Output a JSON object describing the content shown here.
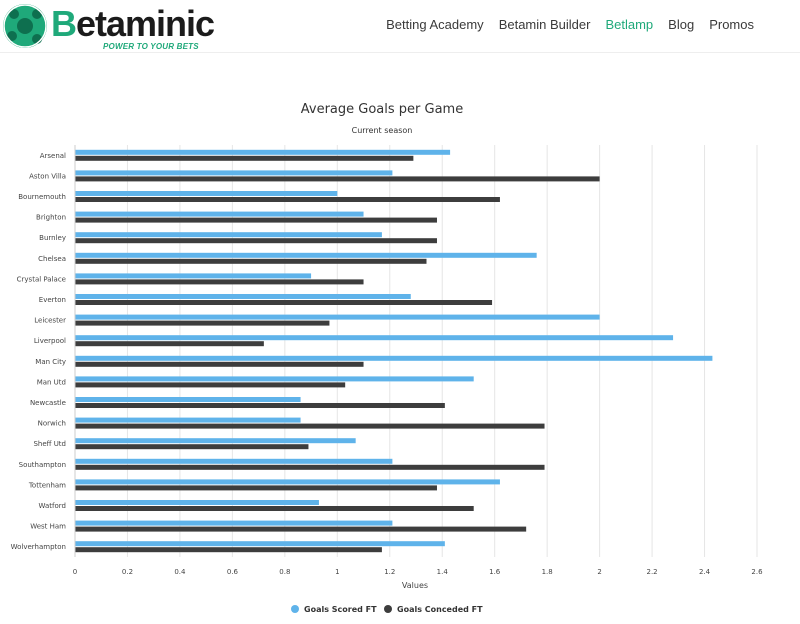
{
  "brand": {
    "logo_text_first": "B",
    "logo_text_rest": "etaminic",
    "tagline": "POWER TO YOUR BETS",
    "accent_color": "#1fa97a"
  },
  "nav": {
    "items": [
      {
        "label": "Betting Academy"
      },
      {
        "label": "Betamin Builder"
      },
      {
        "label": "Betlamp"
      },
      {
        "label": "Blog"
      },
      {
        "label": "Promos"
      }
    ],
    "active": "Betlamp"
  },
  "chart_data": {
    "type": "bar",
    "orientation": "horizontal",
    "title": "Average Goals per Game",
    "subtitle": "Current season",
    "xlabel": "Values",
    "xlim": [
      0,
      2.6
    ],
    "xticks": [
      0,
      0.2,
      0.4,
      0.6,
      0.8,
      1,
      1.2,
      1.4,
      1.6,
      1.8,
      2,
      2.2,
      2.4,
      2.6
    ],
    "grid": true,
    "legend_position": "bottom",
    "categories": [
      "Arsenal",
      "Aston Villa",
      "Bournemouth",
      "Brighton",
      "Burnley",
      "Chelsea",
      "Crystal Palace",
      "Everton",
      "Leicester",
      "Liverpool",
      "Man City",
      "Man Utd",
      "Newcastle",
      "Norwich",
      "Sheff Utd",
      "Southampton",
      "Tottenham",
      "Watford",
      "West Ham",
      "Wolverhampton"
    ],
    "series": [
      {
        "name": "Goals Scored FT",
        "color": "#5fb3ea",
        "values": [
          1.43,
          1.21,
          1.0,
          1.1,
          1.17,
          1.76,
          0.9,
          1.28,
          2.0,
          2.28,
          2.43,
          1.52,
          0.86,
          0.86,
          1.07,
          1.21,
          1.62,
          0.93,
          1.21,
          1.41
        ]
      },
      {
        "name": "Goals Conceded FT",
        "color": "#3d3d3d",
        "values": [
          1.29,
          2.0,
          1.62,
          1.38,
          1.38,
          1.34,
          1.1,
          1.59,
          0.97,
          0.72,
          1.1,
          1.03,
          1.41,
          1.79,
          0.89,
          1.79,
          1.38,
          1.52,
          1.72,
          1.17
        ]
      }
    ]
  }
}
